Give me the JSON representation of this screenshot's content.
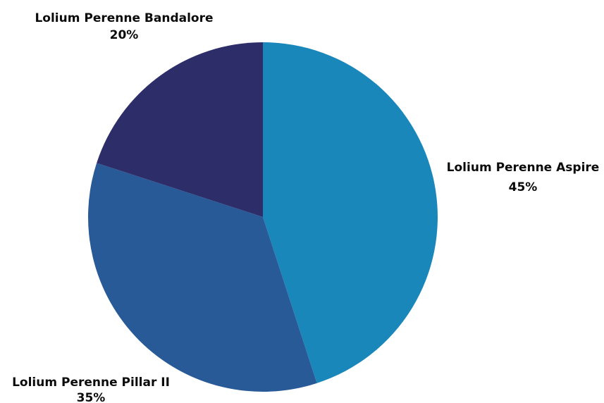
{
  "chart_data": {
    "type": "pie",
    "categories": [
      "Lolium Perenne Aspire",
      "Lolium Perenne Pillar II",
      "Lolium Perenne Bandalore"
    ],
    "values": [
      45,
      35,
      20
    ],
    "value_labels": [
      "45%",
      "35%",
      "20%"
    ],
    "colors": [
      "#1a87ba",
      "#295a98",
      "#2d2d6a"
    ],
    "start": "top",
    "direction": "clockwise",
    "legend": "none",
    "title": ""
  }
}
